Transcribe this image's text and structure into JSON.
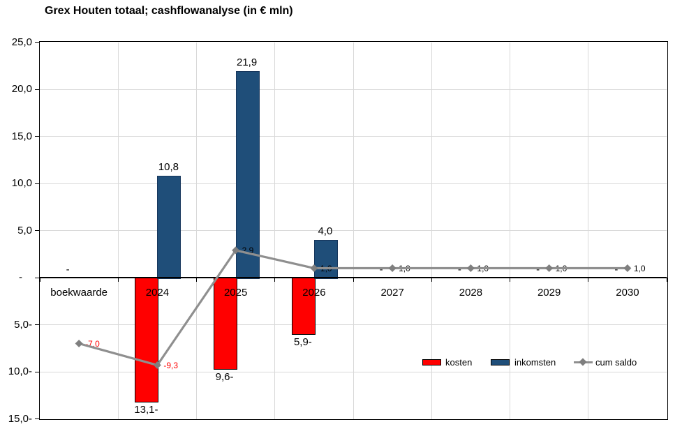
{
  "title": "Grex Houten totaal; cashflowanalyse (in € mln)",
  "chart_data": {
    "type": "combo",
    "subtype": "clustered-bar + line",
    "title": "Grex Houten totaal; cashflowanalyse (in € mln)",
    "categories": [
      "boekwaarde",
      "2024",
      "2025",
      "2026",
      "2027",
      "2028",
      "2029",
      "2030"
    ],
    "series": [
      {
        "name": "kosten",
        "chart_type": "bar",
        "color": "#FF0000",
        "border_color": "#000000",
        "values": [
          0,
          -13.1,
          -9.6,
          -5.9,
          0,
          0,
          0,
          0
        ],
        "labels": [
          "-",
          "13,1-",
          "9,6-",
          "5,9-",
          "-",
          "-",
          "-",
          "-"
        ]
      },
      {
        "name": "inkomsten",
        "chart_type": "bar",
        "color": "#1F4E79",
        "border_color": "#16365C",
        "values": [
          0,
          10.8,
          21.9,
          4.0,
          0,
          0,
          0,
          0
        ],
        "labels": [
          "",
          "10,8",
          "21,9",
          "4,0",
          "",
          "",
          "",
          ""
        ]
      },
      {
        "name": "cum saldo",
        "chart_type": "line",
        "color": "#8F8F8F",
        "marker": "diamond",
        "marker_color": "#7F7F7F",
        "values": [
          -7.0,
          -9.3,
          2.9,
          1.0,
          1.0,
          1.0,
          1.0,
          1.0
        ],
        "labels": [
          "-7,0",
          "-9,3",
          "2,9",
          "1,0",
          "1,0",
          "1,0",
          "1,0",
          "1,0"
        ],
        "label_color": "#000000",
        "negative_label_color": "#FF0000"
      }
    ],
    "y_axis": {
      "min": -15,
      "max": 25,
      "step": 5,
      "tick_labels": [
        "25,0",
        "20,0",
        "15,0",
        "10,0",
        "5,0",
        "-",
        "5,0-",
        "10,0-",
        "15,0-"
      ]
    },
    "grid": {
      "horizontal": true,
      "vertical": true,
      "color": "#D9D9D9"
    },
    "axis_color": "#000000",
    "legend": {
      "position": "inside-bottom-right",
      "items": [
        "kosten",
        "inkomsten",
        "cum saldo"
      ]
    }
  }
}
